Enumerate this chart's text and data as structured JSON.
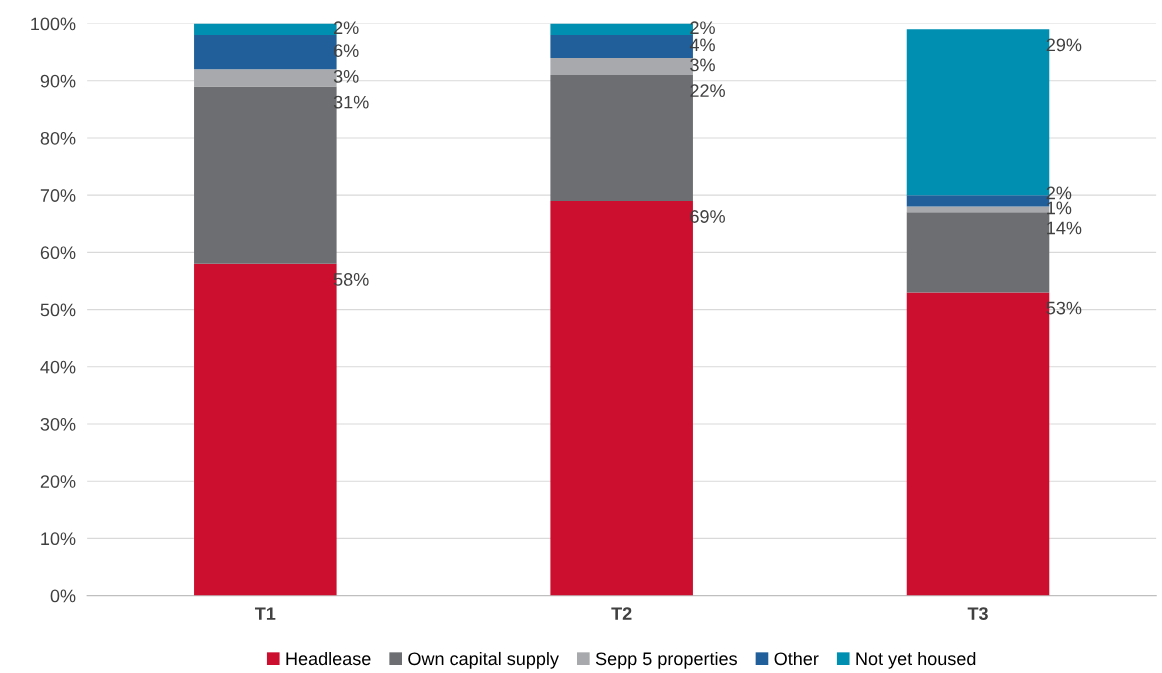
{
  "chart_data": {
    "type": "bar",
    "stacked": true,
    "categories": [
      "T1",
      "T2",
      "T3"
    ],
    "series": [
      {
        "name": "Headlease",
        "color": "#cc0f2e",
        "values": [
          58,
          69,
          53
        ],
        "value_labels": [
          "58%",
          "69%",
          "53%"
        ]
      },
      {
        "name": "Own capital supply",
        "color": "#6d6e71",
        "values": [
          31,
          22,
          14
        ],
        "value_labels": [
          "31%",
          "22%",
          "14%"
        ]
      },
      {
        "name": "Sepp 5 properties",
        "color": "#a7a9ac",
        "values": [
          3,
          3,
          1
        ],
        "value_labels": [
          "3%",
          "3%",
          "1%"
        ]
      },
      {
        "name": "Other",
        "color": "#215f9a",
        "values": [
          6,
          4,
          2
        ],
        "value_labels": [
          "6%",
          "4%",
          "2%"
        ]
      },
      {
        "name": "Not yet housed",
        "color": "#008fb0",
        "values": [
          2,
          2,
          29
        ],
        "value_labels": [
          "2%",
          "2%",
          "29%"
        ]
      }
    ],
    "ylim": [
      0,
      100
    ],
    "yticks": [
      {
        "value": 0,
        "label": "0%"
      },
      {
        "value": 10,
        "label": "10%"
      },
      {
        "value": 20,
        "label": "20%"
      },
      {
        "value": 30,
        "label": "30%"
      },
      {
        "value": 40,
        "label": "40%"
      },
      {
        "value": 50,
        "label": "50%"
      },
      {
        "value": 60,
        "label": "60%"
      },
      {
        "value": 70,
        "label": "70%"
      },
      {
        "value": 80,
        "label": "80%"
      },
      {
        "value": 90,
        "label": "90%"
      },
      {
        "value": 100,
        "label": "100%"
      }
    ],
    "grid": "y",
    "legend": "bottom"
  }
}
